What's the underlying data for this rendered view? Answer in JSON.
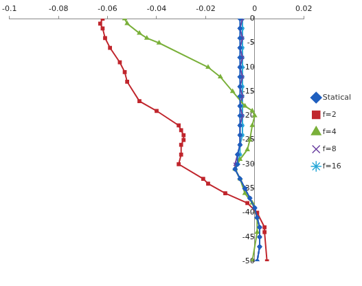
{
  "chart_data": {
    "type": "line",
    "xlim": [
      -0.1,
      0.02
    ],
    "xticks": [
      -0.1,
      -0.08,
      -0.06,
      -0.04,
      -0.02,
      0,
      0.02
    ],
    "ylim": [
      -50,
      0
    ],
    "yticks": [
      0,
      -5,
      -10,
      -15,
      -20,
      -25,
      -30,
      -35,
      -40,
      -45,
      -50
    ],
    "grid": false,
    "legend": "right",
    "series": [
      {
        "name": "Statical",
        "color": "#1f5fbf",
        "marker": "diamond",
        "x": [
          -0.006,
          -0.006,
          -0.006,
          -0.006,
          -0.006,
          -0.006,
          -0.006,
          -0.006,
          -0.006,
          -0.006,
          -0.006,
          -0.006,
          -0.006,
          -0.006,
          -0.007,
          -0.007,
          -0.008,
          -0.006,
          -0.004,
          -0.002,
          0.0,
          0.001,
          0.002,
          0.002,
          0.002,
          0.001
        ],
        "y": [
          0,
          -2,
          -4,
          -6,
          -8,
          -10,
          -12,
          -14,
          -16,
          -18,
          -20,
          -22,
          -24,
          -26,
          -28,
          -30,
          -31,
          -33,
          -35,
          -37,
          -39,
          -41,
          -43,
          -45,
          -47,
          -50
        ]
      },
      {
        "name": "f=2",
        "color": "#c0262d",
        "marker": "square",
        "x": [
          -0.062,
          -0.063,
          -0.062,
          -0.061,
          -0.059,
          -0.055,
          -0.053,
          -0.052,
          -0.047,
          -0.04,
          -0.031,
          -0.03,
          -0.029,
          -0.029,
          -0.03,
          -0.03,
          -0.031,
          -0.021,
          -0.019,
          -0.012,
          -0.003,
          0.001,
          0.004,
          0.004,
          0.005
        ],
        "y": [
          0,
          -1,
          -2,
          -4,
          -6,
          -9,
          -11,
          -13,
          -17,
          -19,
          -22,
          -23,
          -24,
          -25,
          -26,
          -28,
          -30,
          -33,
          -34,
          -36,
          -38,
          -40,
          -43,
          -44,
          -50
        ]
      },
      {
        "name": "f=4",
        "color": "#7ab03a",
        "marker": "triangle",
        "x": [
          -0.053,
          -0.052,
          -0.047,
          -0.044,
          -0.039,
          -0.019,
          -0.014,
          -0.009,
          -0.004,
          -0.001,
          0.0,
          -0.001,
          -0.002,
          -0.003,
          -0.006,
          -0.008,
          -0.006,
          -0.004,
          -0.001,
          0.001,
          0.001,
          -0.001
        ],
        "y": [
          0,
          -1,
          -3,
          -4,
          -5,
          -10,
          -12,
          -15,
          -18,
          -19,
          -20,
          -22,
          -25,
          -27,
          -29,
          -31,
          -33,
          -36,
          -38,
          -41,
          -44,
          -50
        ]
      },
      {
        "name": "f=8",
        "color": "#6a3fa0",
        "marker": "x",
        "x": [
          -0.005,
          -0.006,
          -0.005,
          -0.006,
          -0.005,
          -0.006,
          -0.005,
          -0.006,
          -0.005,
          -0.006,
          -0.005,
          -0.006,
          -0.006,
          -0.006,
          -0.007,
          -0.008,
          -0.008,
          -0.006,
          -0.004,
          -0.002,
          0.0,
          0.001,
          0.002,
          0.002,
          0.002,
          0.001
        ],
        "y": [
          0,
          -2,
          -4,
          -6,
          -8,
          -10,
          -12,
          -14,
          -16,
          -18,
          -20,
          -22,
          -24,
          -26,
          -28,
          -30,
          -31,
          -33,
          -35,
          -37,
          -39,
          -41,
          -43,
          -45,
          -47,
          -50
        ]
      },
      {
        "name": "f=16",
        "color": "#2aa8d8",
        "marker": "star",
        "x": [
          -0.005,
          -0.005,
          -0.005,
          -0.005,
          -0.005,
          -0.005,
          -0.005,
          -0.005,
          -0.005,
          -0.005,
          -0.005,
          -0.005,
          -0.005,
          -0.006,
          -0.006,
          -0.007,
          -0.008,
          -0.006,
          -0.004,
          -0.002,
          0.0,
          0.001,
          0.002,
          0.002,
          0.002,
          0.001
        ],
        "y": [
          0,
          -2,
          -4,
          -6,
          -8,
          -10,
          -12,
          -14,
          -16,
          -18,
          -20,
          -22,
          -24,
          -26,
          -28,
          -30,
          -31,
          -33,
          -35,
          -37,
          -39,
          -41,
          -43,
          -45,
          -47,
          -50
        ]
      }
    ]
  }
}
